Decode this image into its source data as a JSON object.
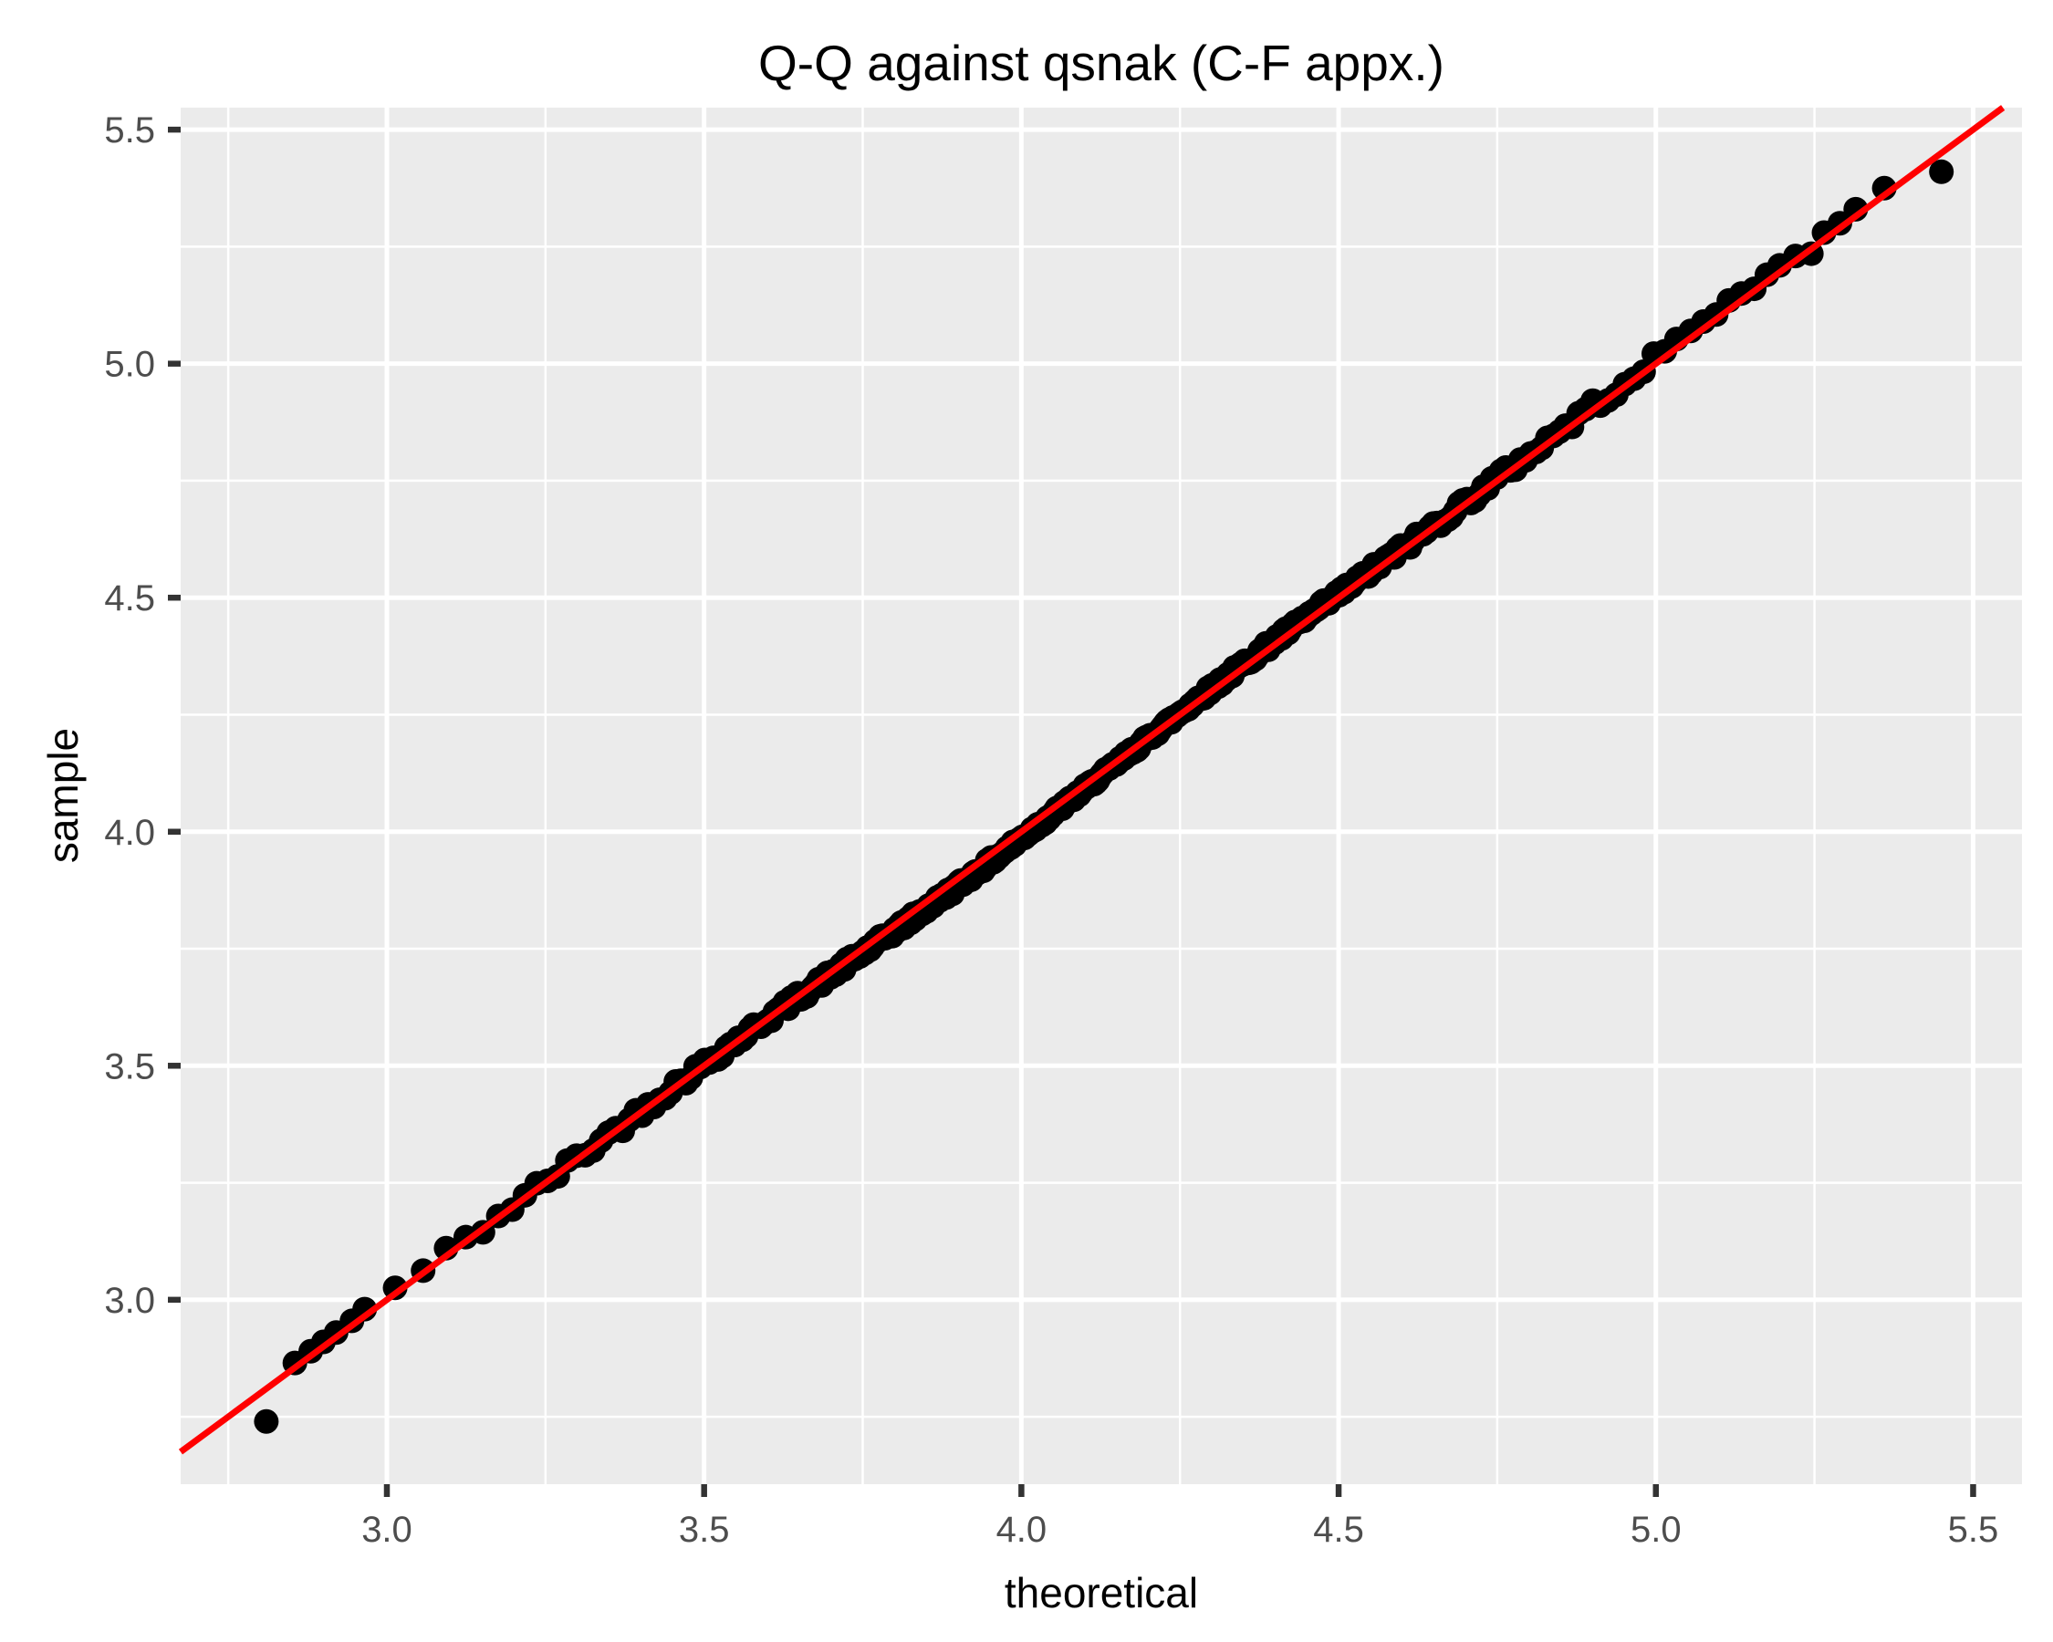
{
  "page": {
    "background": "#FFFFFF"
  },
  "chart_data": {
    "type": "scatter",
    "title": "Q-Q against qsnak (C-F appx.)",
    "xlabel": "theoretical",
    "ylabel": "sample",
    "xlim": [
      2.675,
      5.577
    ],
    "ylim": [
      2.606,
      5.547
    ],
    "x_ticks": [
      3.0,
      3.5,
      4.0,
      4.5,
      5.0,
      5.5
    ],
    "x_tick_labels": [
      "3.0",
      "3.5",
      "4.0",
      "4.5",
      "5.0",
      "5.5"
    ],
    "y_ticks": [
      3.0,
      3.5,
      4.0,
      4.5,
      5.0,
      5.5
    ],
    "y_tick_labels": [
      "3.0",
      "3.5",
      "4.0",
      "4.5",
      "5.0",
      "5.5"
    ],
    "x_minor_ticks": [
      2.75,
      3.25,
      3.75,
      4.25,
      4.75,
      5.25
    ],
    "y_minor_ticks": [
      2.75,
      3.25,
      3.75,
      4.25,
      4.75,
      5.25
    ],
    "grid": true,
    "legend": "none",
    "reference_line": {
      "slope": 1,
      "intercept": 0,
      "color": "#FF0000",
      "width": 7
    },
    "point_color": "#000000",
    "point_radius": 13.5,
    "notable_points": {
      "lower_tail": [
        [
          2.81,
          2.74
        ],
        [
          2.855,
          2.865
        ],
        [
          2.88,
          2.89
        ],
        [
          2.9,
          2.91
        ],
        [
          2.92,
          2.93
        ],
        [
          2.945,
          2.955
        ],
        [
          2.965,
          2.98
        ]
      ],
      "upper_tail": [
        [
          5.055,
          5.07
        ],
        [
          5.075,
          5.09
        ],
        [
          5.095,
          5.105
        ],
        [
          5.115,
          5.135
        ],
        [
          5.135,
          5.15
        ],
        [
          5.155,
          5.16
        ],
        [
          5.175,
          5.19
        ],
        [
          5.195,
          5.21
        ],
        [
          5.22,
          5.23
        ],
        [
          5.245,
          5.235
        ],
        [
          5.265,
          5.28
        ],
        [
          5.29,
          5.3
        ],
        [
          5.315,
          5.33
        ],
        [
          5.36,
          5.375
        ],
        [
          5.45,
          5.41
        ]
      ]
    },
    "dense_band": {
      "summary": "Approximately 400 heavily overlapping points lying essentially on the identity line y = x, forming a continuous thick black band from about (2.96, 2.96) to (5.05, 5.05), with slight wiggle around the red line.",
      "n": 400,
      "mean": 4.125,
      "sd": 0.468,
      "t_range": [
        2.96,
        5.05
      ],
      "wiggle": [
        {
          "amp": 0.01,
          "freq": 3.7,
          "phase": 2.6
        },
        {
          "amp": 0.006,
          "freq": 8.3,
          "phase": 1.1
        }
      ],
      "noise": 0.013,
      "seed": 42
    },
    "style": {
      "panel_background": "#EBEBEB",
      "grid_color": "#FFFFFF",
      "major_grid_width": 5,
      "minor_grid_width": 2.5,
      "tick_color": "#333333",
      "tick_length": 14,
      "tick_width": 6.5,
      "tick_label_color": "#4D4D4D",
      "tick_label_size": 40,
      "axis_title_size": 46,
      "title_size": 55,
      "title_color": "#000000",
      "axis_title_color": "#000000"
    }
  }
}
